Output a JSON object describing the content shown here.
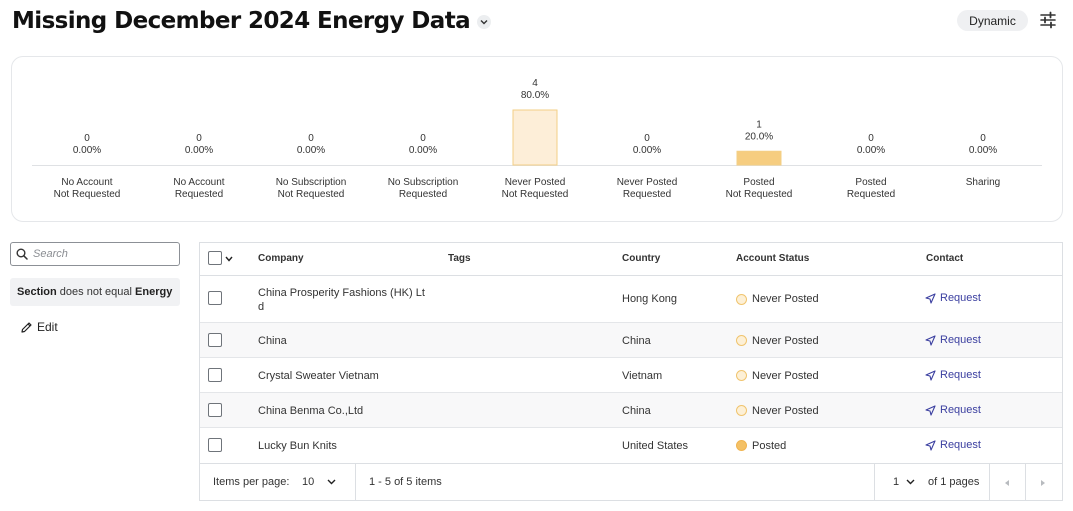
{
  "header": {
    "title": "Missing December 2024 Energy Data",
    "mode_badge": "Dynamic",
    "settings_icon": "sliders-icon",
    "title_menu_icon": "chevron-down-icon"
  },
  "chart_data": {
    "type": "bar",
    "categories": [
      [
        "No Account",
        "Not Requested"
      ],
      [
        "No Account",
        "Requested"
      ],
      [
        "No Subscription",
        "Not Requested"
      ],
      [
        "No Subscription",
        "Requested"
      ],
      [
        "Never Posted",
        "Not Requested"
      ],
      [
        "Never Posted",
        "Requested"
      ],
      [
        "Posted",
        "Not Requested"
      ],
      [
        "Posted",
        "Requested"
      ],
      [
        "Sharing"
      ]
    ],
    "values": [
      0,
      0,
      0,
      0,
      4,
      0,
      1,
      0,
      0
    ],
    "percent_labels": [
      "0.00%",
      "0.00%",
      "0.00%",
      "0.00%",
      "80.0%",
      "0.00%",
      "20.0%",
      "0.00%",
      "0.00%"
    ],
    "bar_colors": [
      "#fdeed8",
      "#fdeed8",
      "#fdeed8",
      "#fdeed8",
      "#fdeed8",
      "#fdeed8",
      "#f6cd80",
      "#f6cd80",
      "#f6cd80"
    ],
    "bar_border_colors": [
      "#f3cf86",
      "#f3cf86",
      "#f3cf86",
      "#f3cf86",
      "#f3cf86",
      "#f3cf86",
      "#f3cf86",
      "#f3cf86",
      "#f3cf86"
    ],
    "ylim": [
      0,
      4
    ],
    "title": "",
    "xlabel": "",
    "ylabel": ""
  },
  "sidebar": {
    "search_placeholder": "Search",
    "filter_field": "Section",
    "filter_operator": "does not equal",
    "filter_value": "Energy",
    "edit_label": "Edit"
  },
  "table": {
    "headers": {
      "company": "Company",
      "tags": "Tags",
      "country": "Country",
      "status": "Account Status",
      "contact": "Contact"
    },
    "rows": [
      {
        "company_line1": "China Prosperity Fashions (HK) Lt",
        "company_line2": "d",
        "country": "Hong Kong",
        "status": "Never Posted",
        "contact": "Request"
      },
      {
        "company_line1": "China",
        "company_line2": "",
        "country": "China",
        "status": "Never Posted",
        "contact": "Request"
      },
      {
        "company_line1": "Crystal Sweater Vietnam",
        "company_line2": "",
        "country": "Vietnam",
        "status": "Never Posted",
        "contact": "Request"
      },
      {
        "company_line1": "China Benma Co.,Ltd",
        "company_line2": "",
        "country": "China",
        "status": "Never Posted",
        "contact": "Request"
      },
      {
        "company_line1": "Lucky Bun Knits",
        "company_line2": "",
        "country": "United States",
        "status": "Posted",
        "contact": "Request"
      }
    ],
    "status_colors": {
      "never_posted": "#fdf0d6",
      "posted": "#f4c166"
    }
  },
  "pagination": {
    "items_per_page_label": "Items per page:",
    "items_per_page_value": "10",
    "range_text": "1 - 5 of 5 items",
    "current_page": "1",
    "total_pages_text": "of 1 pages"
  }
}
